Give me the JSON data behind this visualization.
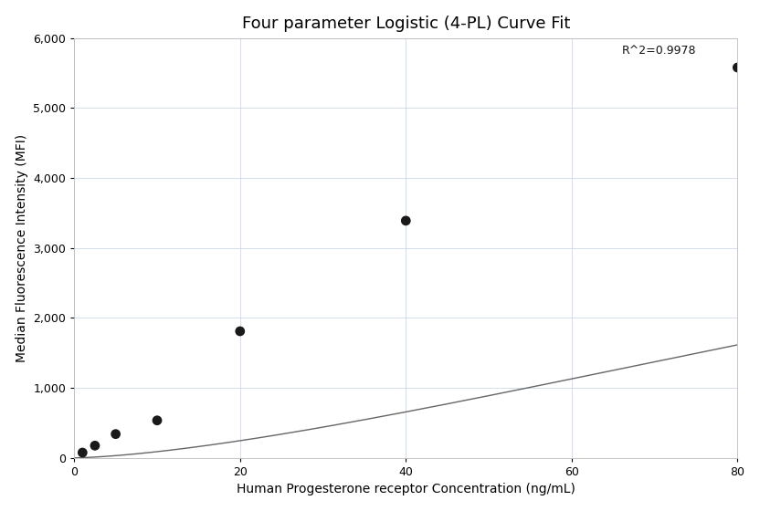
{
  "title": "Four parameter Logistic (4-PL) Curve Fit",
  "xlabel": "Human Progesterone receptor Concentration (ng/mL)",
  "ylabel": "Median Fluorescence Intensity (MFI)",
  "scatter_x": [
    1,
    2.5,
    5,
    10,
    20,
    40,
    80
  ],
  "scatter_y": [
    75,
    175,
    340,
    535,
    1810,
    3390,
    5580
  ],
  "xlim": [
    0,
    80
  ],
  "ylim": [
    0,
    6000
  ],
  "xticks": [
    0,
    20,
    40,
    60,
    80
  ],
  "yticks": [
    0,
    1000,
    2000,
    3000,
    4000,
    5000,
    6000
  ],
  "r2_text": "R^2=0.9978",
  "r2_x": 66,
  "r2_y": 5820,
  "dot_color": "#1a1a1a",
  "dot_size": 60,
  "line_color": "#666666",
  "background_color": "#ffffff",
  "grid_color": "#ccd9ea",
  "title_fontsize": 13,
  "label_fontsize": 10,
  "tick_fontsize": 9
}
